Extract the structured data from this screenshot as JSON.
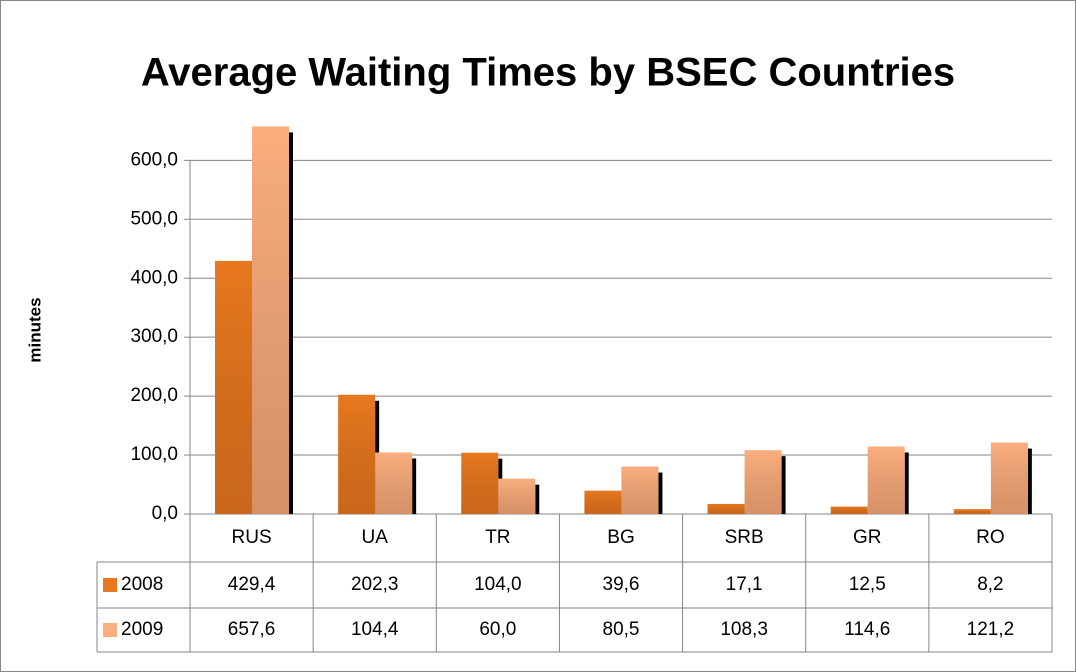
{
  "chart_data": {
    "type": "bar",
    "title": "Average Waiting Times by BSEC Countries",
    "y_label": "minutes",
    "categories": [
      "RUS",
      "UA",
      "TR",
      "BG",
      "SRB",
      "GR",
      "RO"
    ],
    "series": [
      {
        "name": "2008",
        "color": "#e8781f",
        "values": [
          429.4,
          202.3,
          104.0,
          39.6,
          17.1,
          12.5,
          8.2
        ],
        "value_labels": [
          "429,4",
          "202,3",
          "104,0",
          "39,6",
          "17,1",
          "12,5",
          "8,2"
        ]
      },
      {
        "name": "2009",
        "color": "#fbae7e",
        "values": [
          657.6,
          104.4,
          60.0,
          80.5,
          108.3,
          114.6,
          121.2
        ],
        "value_labels": [
          "657,6",
          "104,4",
          "60,0",
          "80,5",
          "108,3",
          "114,6",
          "121,2"
        ]
      }
    ],
    "ylim": [
      0,
      660
    ],
    "yticks": [
      {
        "value": 0,
        "label": "0,0"
      },
      {
        "value": 100,
        "label": "100,0"
      },
      {
        "value": 200,
        "label": "200,0"
      },
      {
        "value": 300,
        "label": "300,0"
      },
      {
        "value": 400,
        "label": "400,0"
      },
      {
        "value": 500,
        "label": "500,0"
      },
      {
        "value": 600,
        "label": "600,0"
      }
    ],
    "grid": true
  }
}
